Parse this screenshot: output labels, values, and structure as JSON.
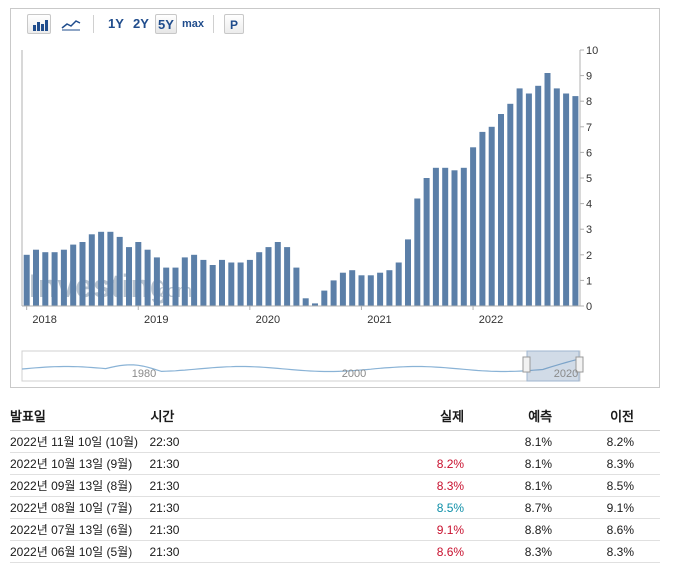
{
  "toolbar": {
    "ranges": [
      "1Y",
      "2Y",
      "5Y",
      "max"
    ],
    "active_range": "5Y",
    "p_label": "P"
  },
  "colors": {
    "bar": "#5b7fa8",
    "axis": "#b0b0b0",
    "navigator_line": "#8ab3d6",
    "red": "#c8102e",
    "green": "#0e8fa8"
  },
  "watermark": {
    "brand": "Investing",
    "suffix": ".com"
  },
  "chart_data": {
    "type": "bar",
    "ylim": [
      0,
      10
    ],
    "y_ticks": [
      "0",
      "1",
      "2",
      "3",
      "4",
      "5",
      "6",
      "7",
      "8",
      "9",
      "10"
    ],
    "x_tick_labels": [
      "2018",
      "2019",
      "2020",
      "2021",
      "2022"
    ],
    "values": [
      2.0,
      2.2,
      2.1,
      2.1,
      2.2,
      2.4,
      2.5,
      2.8,
      2.9,
      2.9,
      2.7,
      2.3,
      2.5,
      2.2,
      1.9,
      1.5,
      1.5,
      1.9,
      2.0,
      1.8,
      1.6,
      1.8,
      1.7,
      1.7,
      1.8,
      2.1,
      2.3,
      2.5,
      2.3,
      1.5,
      0.3,
      0.1,
      0.6,
      1.0,
      1.3,
      1.4,
      1.2,
      1.2,
      1.3,
      1.4,
      1.7,
      2.6,
      4.2,
      5.0,
      5.4,
      5.4,
      5.3,
      5.4,
      6.2,
      6.8,
      7.0,
      7.5,
      7.9,
      8.5,
      8.3,
      8.6,
      9.1,
      8.5,
      8.3,
      8.2
    ],
    "navigator": {
      "labels": [
        "1980",
        "2000",
        "2020"
      ]
    }
  },
  "table": {
    "headers": {
      "date": "발표일",
      "time": "시간",
      "actual": "실제",
      "forecast": "예측",
      "previous": "이전"
    },
    "rows": [
      {
        "date": "2022년 11월 10일 (10월)",
        "time": "22:30",
        "actual": "",
        "actual_color": "",
        "forecast": "8.1%",
        "previous": "8.2%"
      },
      {
        "date": "2022년 10월 13일 (9월)",
        "time": "21:30",
        "actual": "8.2%",
        "actual_color": "red",
        "forecast": "8.1%",
        "previous": "8.3%"
      },
      {
        "date": "2022년 09월 13일 (8월)",
        "time": "21:30",
        "actual": "8.3%",
        "actual_color": "red",
        "forecast": "8.1%",
        "previous": "8.5%"
      },
      {
        "date": "2022년 08월 10일 (7월)",
        "time": "21:30",
        "actual": "8.5%",
        "actual_color": "green",
        "forecast": "8.7%",
        "previous": "9.1%"
      },
      {
        "date": "2022년 07월 13일 (6월)",
        "time": "21:30",
        "actual": "9.1%",
        "actual_color": "red",
        "forecast": "8.8%",
        "previous": "8.6%"
      },
      {
        "date": "2022년 06월 10일 (5월)",
        "time": "21:30",
        "actual": "8.6%",
        "actual_color": "red",
        "forecast": "8.3%",
        "previous": "8.3%"
      }
    ]
  }
}
